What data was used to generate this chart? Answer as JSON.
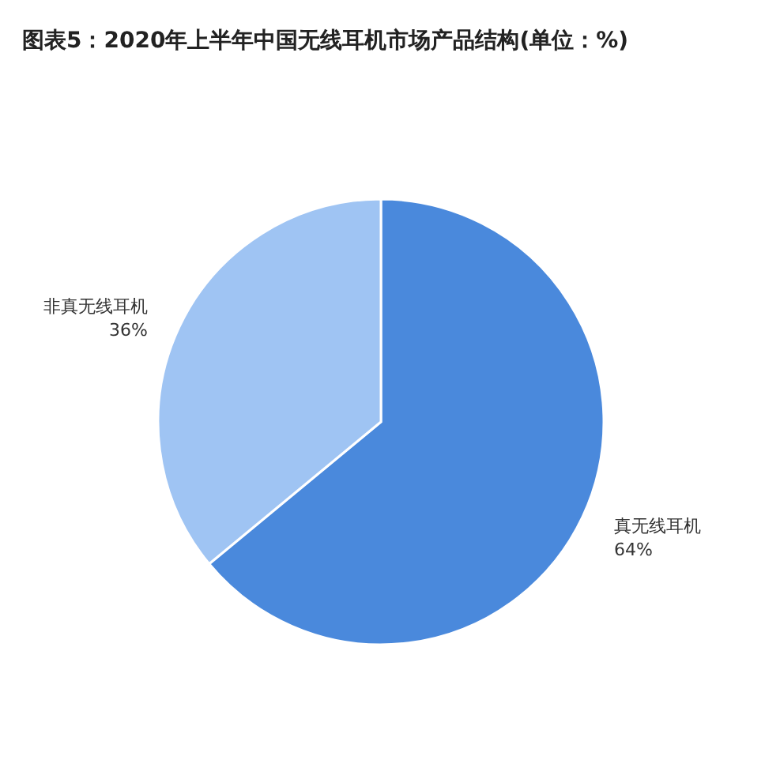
{
  "chart_data": {
    "type": "pie",
    "title": "图表5：2020年上半年中国无线耳机市场产品结构(单位：%)",
    "categories": [
      "真无线耳机",
      "非真无线耳机"
    ],
    "values": [
      64,
      36
    ],
    "colors": [
      "#4a89dc",
      "#9fc4f3"
    ],
    "value_labels": [
      "64%",
      "36%"
    ]
  }
}
